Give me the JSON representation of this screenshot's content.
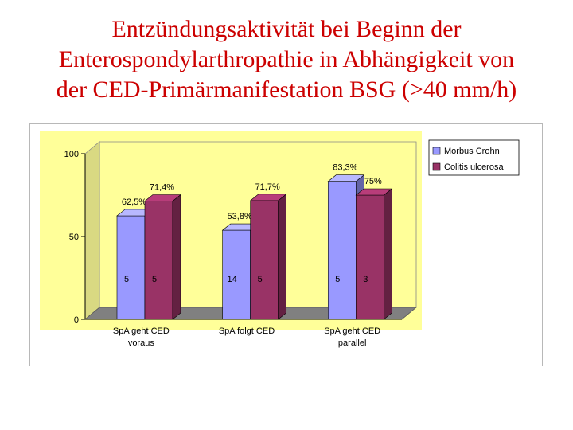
{
  "title_lines": [
    "Entzündungsaktivität bei Beginn der",
    "Enterospondylarthropathie in Abhängigkeit von",
    "der CED-Primärmanifestation BSG (>40 mm/h)"
  ],
  "colors": {
    "title": "#cc0000",
    "wall": "#ffff99",
    "floor": "#808080",
    "series1": "#9999ff",
    "series2": "#993366"
  },
  "chart_data": {
    "type": "bar",
    "categories": [
      [
        "SpA geht CED",
        "voraus"
      ],
      [
        "SpA folgt CED",
        ""
      ],
      [
        "SpA geht CED",
        "parallel"
      ]
    ],
    "series": [
      {
        "name": "Morbus Crohn",
        "values": [
          62.5,
          53.8,
          83.3
        ],
        "value_labels": [
          "62,5%",
          "53,8%",
          "83,3%"
        ],
        "counts": [
          "5",
          "14",
          "5"
        ]
      },
      {
        "name": "Colitis ulcerosa",
        "values": [
          71.4,
          71.7,
          75
        ],
        "value_labels": [
          "71,4%",
          "71,7%",
          "75%"
        ],
        "counts": [
          "5",
          "5",
          "3"
        ]
      }
    ],
    "yticks": [
      "0",
      "50",
      "100"
    ],
    "ylim": [
      0,
      100
    ],
    "legend_position": "right",
    "grid": false,
    "three_d": true
  }
}
